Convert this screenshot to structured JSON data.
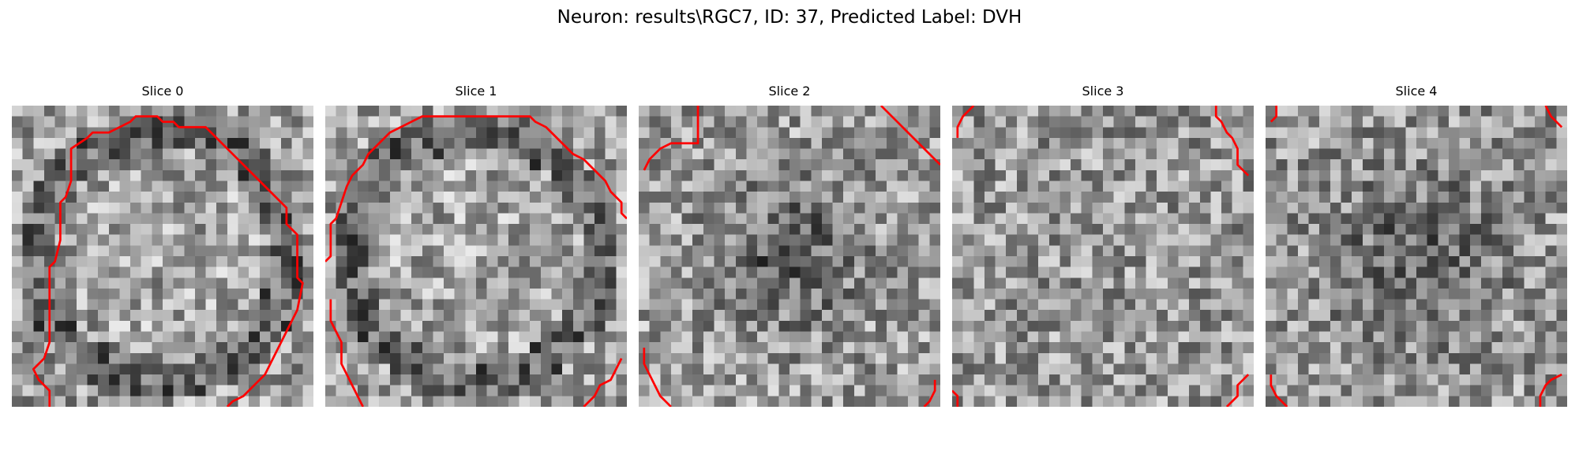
{
  "figure": {
    "title": "Neuron: results\\RGC7, ID: 37, Predicted Label: DVH",
    "colors": {
      "contour": "#ff0000",
      "background": "#ffffff",
      "colormap": "gray"
    },
    "grid_size": 28
  },
  "panels": [
    {
      "title": "Slice 0",
      "seed": 7,
      "pattern": "ring",
      "contours": [
        [
          [
            3.5,
            28
          ],
          [
            3.5,
            26.5
          ],
          [
            2.5,
            25.5
          ],
          [
            2,
            24.5
          ],
          [
            3,
            23.5
          ],
          [
            3.5,
            22
          ],
          [
            3.5,
            15
          ],
          [
            4,
            14.5
          ],
          [
            4.5,
            12.5
          ],
          [
            4.5,
            9
          ],
          [
            5,
            8.5
          ],
          [
            5.5,
            7
          ],
          [
            5.5,
            4
          ],
          [
            7,
            3
          ],
          [
            7.5,
            2.5
          ],
          [
            9,
            2.5
          ],
          [
            10,
            2
          ],
          [
            11,
            1.5
          ],
          [
            11.5,
            1
          ],
          [
            13.5,
            1
          ],
          [
            14,
            1.5
          ],
          [
            15,
            1.5
          ],
          [
            15.5,
            2
          ],
          [
            18,
            2
          ],
          [
            18.5,
            2.5
          ],
          [
            19.5,
            3.5
          ],
          [
            20,
            4
          ],
          [
            21,
            5
          ],
          [
            22,
            6
          ],
          [
            23,
            7
          ],
          [
            24,
            8
          ],
          [
            25.5,
            9.5
          ],
          [
            25.5,
            11
          ],
          [
            26,
            11.5
          ],
          [
            26.5,
            12
          ],
          [
            26.5,
            16
          ],
          [
            27,
            16.5
          ],
          [
            26.5,
            19
          ],
          [
            26,
            20
          ],
          [
            25.5,
            21
          ],
          [
            25,
            22
          ],
          [
            24.5,
            23
          ],
          [
            24,
            24
          ],
          [
            23.5,
            25
          ],
          [
            22.5,
            26
          ],
          [
            21.5,
            27
          ],
          [
            20.5,
            27.5
          ],
          [
            20,
            28
          ]
        ]
      ]
    },
    {
      "title": "Slice 1",
      "seed": 11,
      "pattern": "ring",
      "contours": [
        [
          [
            0,
            14.5
          ],
          [
            0.5,
            14
          ],
          [
            0.5,
            11
          ],
          [
            1,
            10.5
          ],
          [
            1.5,
            9
          ],
          [
            2,
            7.5
          ],
          [
            2.5,
            6.5
          ],
          [
            3.5,
            5.5
          ],
          [
            4,
            4.5
          ],
          [
            5,
            3.5
          ],
          [
            6,
            2.5
          ],
          [
            7,
            2
          ],
          [
            8,
            1.5
          ],
          [
            9,
            1
          ],
          [
            19,
            1
          ],
          [
            19.5,
            1.5
          ],
          [
            20.5,
            2
          ],
          [
            21,
            2.5
          ],
          [
            22,
            3.5
          ],
          [
            23,
            4.5
          ],
          [
            24,
            5
          ],
          [
            25,
            6
          ],
          [
            26,
            7
          ],
          [
            26.5,
            8
          ],
          [
            27.5,
            9
          ],
          [
            27.5,
            10
          ],
          [
            28,
            10.5
          ]
        ],
        [
          [
            0.5,
            18
          ],
          [
            0.5,
            20
          ],
          [
            1,
            21
          ],
          [
            1.5,
            22
          ],
          [
            1.5,
            24
          ],
          [
            2,
            25
          ],
          [
            2.5,
            26
          ],
          [
            3,
            27
          ],
          [
            3.5,
            28
          ]
        ],
        [
          [
            24,
            28
          ],
          [
            25,
            27
          ],
          [
            25.5,
            26
          ],
          [
            26.5,
            25.5
          ],
          [
            27,
            24.5
          ],
          [
            27.5,
            23.5
          ]
        ]
      ]
    },
    {
      "title": "Slice 2",
      "seed": 23,
      "pattern": "center",
      "contours": [
        [
          [
            0.5,
            6
          ],
          [
            1,
            5
          ],
          [
            2,
            4
          ],
          [
            3,
            3.5
          ],
          [
            5.5,
            3.5
          ],
          [
            5.5,
            0
          ]
        ],
        [
          [
            22.5,
            0
          ],
          [
            23,
            0.5
          ],
          [
            24,
            1.5
          ],
          [
            25,
            2.5
          ],
          [
            26,
            3.5
          ],
          [
            27,
            4.5
          ],
          [
            28,
            5.5
          ]
        ],
        [
          [
            0.5,
            22.5
          ],
          [
            0.5,
            24
          ],
          [
            1,
            25
          ],
          [
            1.5,
            26
          ],
          [
            2,
            27
          ],
          [
            2.5,
            27.5
          ],
          [
            3,
            28
          ]
        ],
        [
          [
            26.5,
            28
          ],
          [
            27,
            27.5
          ],
          [
            27.5,
            26.5
          ],
          [
            27.5,
            25.5
          ]
        ]
      ]
    },
    {
      "title": "Slice 3",
      "seed": 31,
      "pattern": "flat",
      "contours": [
        [
          [
            0.5,
            3
          ],
          [
            0.5,
            2
          ],
          [
            1,
            1
          ],
          [
            2,
            0
          ]
        ],
        [
          [
            24.5,
            0
          ],
          [
            24.5,
            1
          ],
          [
            25,
            1.5
          ],
          [
            25.5,
            2.5
          ],
          [
            26,
            3
          ],
          [
            26.5,
            4
          ],
          [
            26.5,
            5.5
          ],
          [
            27.5,
            6.5
          ]
        ],
        [
          [
            0,
            26.5
          ],
          [
            0.5,
            27
          ],
          [
            0.5,
            28
          ]
        ],
        [
          [
            25.5,
            28
          ],
          [
            26.5,
            27
          ],
          [
            26.5,
            26
          ],
          [
            27.5,
            25
          ]
        ]
      ]
    },
    {
      "title": "Slice 4",
      "seed": 43,
      "pattern": "smooth",
      "contours": [
        [
          [
            0.5,
            1.5
          ],
          [
            1,
            1
          ],
          [
            1,
            0
          ]
        ],
        [
          [
            26,
            0
          ],
          [
            26.5,
            1
          ],
          [
            27,
            1.5
          ],
          [
            27.5,
            2
          ]
        ],
        [
          [
            0.5,
            25
          ],
          [
            0.5,
            26
          ],
          [
            1,
            27
          ],
          [
            2,
            28
          ]
        ],
        [
          [
            25.5,
            28
          ],
          [
            25.5,
            27
          ],
          [
            26,
            26
          ],
          [
            26.5,
            25.5
          ],
          [
            27.5,
            25
          ]
        ]
      ]
    }
  ]
}
